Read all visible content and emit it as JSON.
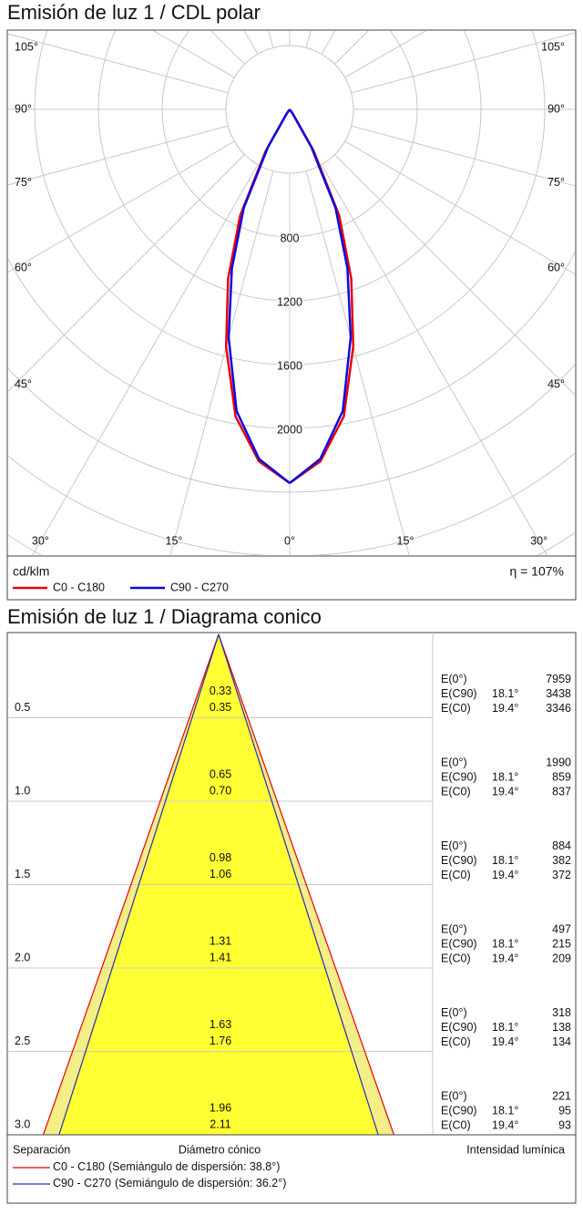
{
  "chart_data": [
    {
      "type": "polar",
      "title": "Emisión de luz 1 / CDL polar",
      "unit": "cd/klm",
      "efficiency": "η = 107%",
      "angles": [
        0,
        5,
        10,
        15,
        20,
        25,
        30,
        35,
        40,
        45
      ],
      "series": [
        {
          "name": "C0 - C180",
          "color": "#e8000b",
          "values": [
            2343,
            2215,
            1955,
            1540,
            1130,
            735,
            300,
            40,
            0,
            0
          ]
        },
        {
          "name": "C90 - C270",
          "color": "#0a0ae0",
          "values": [
            2343,
            2200,
            1920,
            1480,
            1060,
            680,
            270,
            30,
            0,
            0
          ]
        }
      ],
      "rlim": [
        0,
        2400
      ],
      "rticks": [
        800,
        1200,
        1600,
        2000
      ],
      "angle_ticks": [
        {
          "value": 0,
          "label": "0°"
        },
        {
          "value": 15,
          "label": "15°"
        },
        {
          "value": 30,
          "label": "30°"
        },
        {
          "value": 45,
          "label": "45°"
        },
        {
          "value": 60,
          "label": "60°"
        },
        {
          "value": 75,
          "label": "75°"
        },
        {
          "value": 90,
          "label": "90°"
        },
        {
          "value": 105,
          "label": "105°"
        }
      ]
    },
    {
      "type": "cone",
      "title": "Emisión de luz 1 / Diagrama conico",
      "headers": [
        "Separación",
        "Diámetro cónico",
        "Intensidad lumínica"
      ],
      "ylim": [
        0,
        3
      ],
      "separation": [
        0.5,
        {
          "value": 1,
          "label": "1.0"
        },
        1.5,
        {
          "value": 2,
          "label": "2.0"
        },
        2.5,
        {
          "value": 3,
          "label": "3.0"
        }
      ],
      "series": [
        {
          "name": "C0 - C180",
          "color": "#e8000b",
          "half_angle": {
            "value": 38.8,
            "label": "(Semiángulo de dispersión: 38.8°)"
          },
          "diameters": [
            0.35,
            {
              "value": 0.7,
              "label": "0.70"
            },
            1.06,
            1.41,
            1.76,
            2.11
          ]
        },
        {
          "name": "C90 - C270",
          "color": "#2a2ab8",
          "half_angle": {
            "value": 36.2,
            "label": "(Semiángulo de dispersión: 36.2°)"
          },
          "diameters": [
            0.33,
            0.65,
            0.98,
            1.31,
            1.63,
            1.96
          ]
        }
      ],
      "illuminance": [
        {
          "label": "E(0°)",
          "values": [
            7959,
            1990,
            884,
            497,
            318,
            221
          ]
        },
        {
          "label": "E(C90)",
          "angle": "18.1°",
          "values": [
            3438,
            859,
            382,
            215,
            138,
            95
          ]
        },
        {
          "label": "E(C0)",
          "angle": "19.4°",
          "values": [
            3346,
            837,
            372,
            209,
            134,
            93
          ]
        }
      ]
    }
  ]
}
